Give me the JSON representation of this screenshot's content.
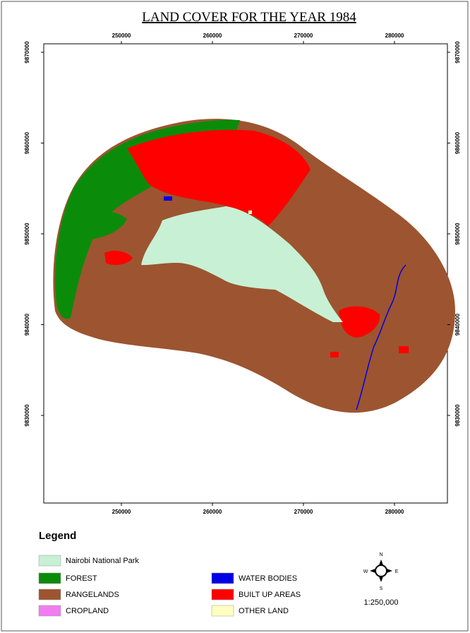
{
  "title": "LAND COVER FOR THE YEAR 1984",
  "easting_ticks": [
    250000,
    260000,
    270000,
    280000
  ],
  "northing_ticks": [
    9870000,
    9860000,
    9850000,
    9840000,
    9830000
  ],
  "legend": {
    "title": "Legend",
    "items": [
      {
        "label": "Nairobi National Park",
        "color": "#c8f0d4"
      },
      {
        "label": "FOREST",
        "color": "#0a8c0a"
      },
      {
        "label": "RANGELANDS",
        "color": "#9c5530"
      },
      {
        "label": "CROPLAND",
        "color": "#f07ef0"
      },
      {
        "label": "WATER BODIES",
        "color": "#0000e6"
      },
      {
        "label": "BUILT UP AREAS",
        "color": "#ff0000"
      },
      {
        "label": "OTHER LAND",
        "color": "#ffffc0"
      }
    ]
  },
  "compass": {
    "n": "N",
    "s": "S",
    "e": "E",
    "w": "W"
  },
  "scale": "1:250,000"
}
